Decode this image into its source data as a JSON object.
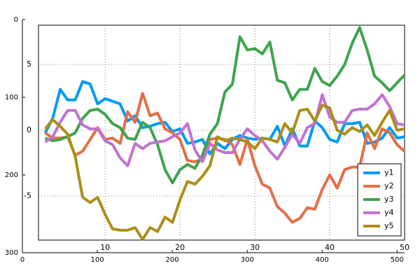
{
  "chart_data": [
    {
      "type": "axes",
      "xlim": [
        0,
        510
      ],
      "xticks": [
        0,
        100,
        200,
        300,
        400,
        500
      ],
      "ylim": [
        0,
        300
      ],
      "yticks": [
        0,
        100,
        200,
        300
      ],
      "y_inverted": true
    },
    {
      "type": "line",
      "x": [
        2,
        3,
        4,
        5,
        6,
        7,
        8,
        9,
        10,
        11,
        12,
        13,
        14,
        15,
        16,
        17,
        18,
        19,
        20,
        21,
        22,
        23,
        24,
        25,
        26,
        27,
        28,
        29,
        30,
        31,
        32,
        33,
        34,
        35,
        36,
        37,
        38,
        39,
        40,
        41,
        42,
        43,
        44,
        45,
        46,
        47,
        48,
        49,
        50
      ],
      "xlim": [
        1.1,
        50
      ],
      "xticks": [
        10,
        20,
        30,
        40,
        50
      ],
      "ylim": [
        -8.35,
        7.98
      ],
      "yticks": [
        -5,
        0,
        5
      ],
      "grid": true,
      "legend": "lower right",
      "series": [
        {
          "name": "y1",
          "color": "#009af9",
          "values": [
            -0.2,
            0.9,
            3.1,
            2.3,
            2.3,
            3.7,
            3.5,
            2.0,
            2.4,
            2.2,
            2.0,
            0.7,
            1.1,
            0.2,
            0.3,
            0.5,
            0.6,
            -0.1,
            0.1,
            -1.0,
            -0.9,
            -0.7,
            -1.8,
            -1.0,
            -1.4,
            -0.7,
            -0.4,
            -0.6,
            -0.7,
            -0.6,
            -0.7,
            0.3,
            -1.2,
            0.1,
            -1.2,
            -1.2,
            0.7,
            0.2,
            -0.7,
            -0.9,
            0.5,
            0.5,
            0.6,
            -1.0,
            -0.9,
            -0.6,
            0.2,
            -0.6,
            -0.5
          ]
        },
        {
          "name": "y2",
          "color": "#e26f46",
          "values": [
            -0.2,
            -0.6,
            -0.6,
            -0.5,
            -1.9,
            -1.6,
            -0.7,
            0.2,
            -0.7,
            -0.6,
            -1.0,
            1.4,
            0.6,
            2.8,
            1.1,
            1.3,
            0.1,
            -0.2,
            -0.7,
            -2.3,
            -2.4,
            -2.2,
            -0.7,
            -0.6,
            -0.7,
            -1.1,
            -2.6,
            -0.7,
            -2.7,
            -4.1,
            -4.4,
            -5.8,
            -6.3,
            -7.0,
            -6.7,
            -5.9,
            -6.0,
            -4.5,
            -3.4,
            -4.4,
            -3.0,
            -2.8,
            -2.8,
            -0.2,
            -1.4,
            0.1,
            -0.2,
            -1.1,
            -1.6
          ]
        },
        {
          "name": "y3",
          "color": "#3da44d",
          "values": [
            -0.6,
            -0.8,
            -0.7,
            -0.5,
            -0.2,
            0.9,
            1.5,
            1.6,
            1.2,
            0.5,
            0.2,
            -0.6,
            -0.7,
            0.6,
            0.2,
            -1.1,
            -3.0,
            -4.0,
            -3.0,
            -2.6,
            -2.9,
            -1.9,
            -0.3,
            0.5,
            2.9,
            3.5,
            7.1,
            6.1,
            6.2,
            5.8,
            6.7,
            3.8,
            3.6,
            2.3,
            3.1,
            3.1,
            4.7,
            3.7,
            3.4,
            4.1,
            5.0,
            6.6,
            7.8,
            6.1,
            4.1,
            3.6,
            3.0,
            3.6,
            4.2
          ]
        },
        {
          "name": "y4",
          "color": "#c271d2",
          "values": [
            -0.9,
            -0.5,
            0.6,
            1.5,
            1.5,
            0.4,
            0.1,
            0.1,
            -0.8,
            -1.1,
            -2.1,
            -2.7,
            -1.0,
            -1.4,
            -1.0,
            -0.9,
            -0.8,
            -0.5,
            -0.2,
            0.5,
            -1.5,
            -2.4,
            -1.0,
            -1.5,
            -1.7,
            -1.7,
            -0.7,
            0.1,
            -0.4,
            -0.8,
            -1.6,
            -2.2,
            -1.3,
            -0.3,
            -1.0,
            0.2,
            0.5,
            2.7,
            1.0,
            0.6,
            0.6,
            1.5,
            1.6,
            1.6,
            2.0,
            2.7,
            1.8,
            0.5,
            0.4
          ]
        },
        {
          "name": "y5",
          "color": "#ac8e18",
          "values": [
            0.1,
            0.8,
            0.3,
            -0.3,
            -2.0,
            -5.1,
            -5.5,
            -5.1,
            -6.4,
            -7.5,
            -7.6,
            -7.6,
            -7.4,
            -8.3,
            -7.4,
            -7.7,
            -6.6,
            -7.0,
            -5.3,
            -3.9,
            -4.1,
            -3.5,
            -2.7,
            -0.5,
            -0.8,
            -0.6,
            -0.7,
            -0.9,
            -1.4,
            -0.6,
            -0.7,
            -0.9,
            0.5,
            -0.2,
            1.5,
            1.6,
            0.7,
            1.9,
            1.7,
            0.0,
            -0.3,
            0.2,
            -0.1,
            0.4,
            -0.4,
            0.6,
            1.5,
            0.0,
            0.1
          ]
        }
      ]
    }
  ]
}
